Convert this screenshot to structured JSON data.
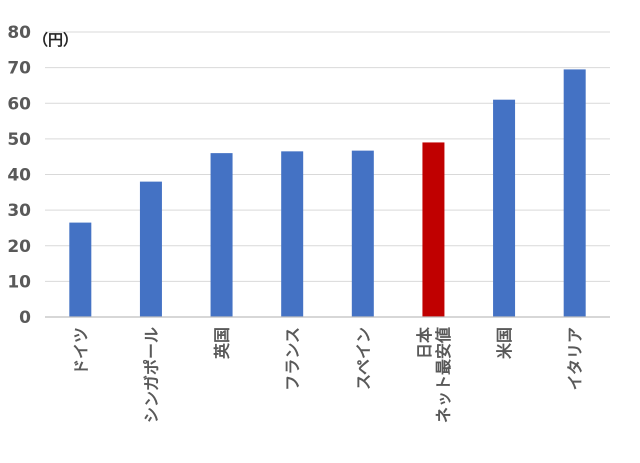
{
  "chart_data": {
    "type": "bar",
    "title": "",
    "xlabel": "",
    "ylabel": "",
    "unit_label": "（円）",
    "ylim": [
      0,
      80
    ],
    "yticks": [
      0,
      10,
      20,
      30,
      40,
      50,
      60,
      70,
      80
    ],
    "grid": true,
    "categories": [
      [
        "ドイツ"
      ],
      [
        "シンガポール"
      ],
      [
        "英国"
      ],
      [
        "フランス"
      ],
      [
        "スペイン"
      ],
      [
        "日本",
        "ネット最安値"
      ],
      [
        "米国"
      ],
      [
        "イタリア"
      ]
    ],
    "values": [
      26.5,
      38,
      46,
      46.5,
      46.7,
      49,
      61,
      69.5
    ],
    "bar_colors": [
      "#4472c4",
      "#4472c4",
      "#4472c4",
      "#4472c4",
      "#4472c4",
      "#c00000",
      "#4472c4",
      "#4472c4"
    ]
  }
}
